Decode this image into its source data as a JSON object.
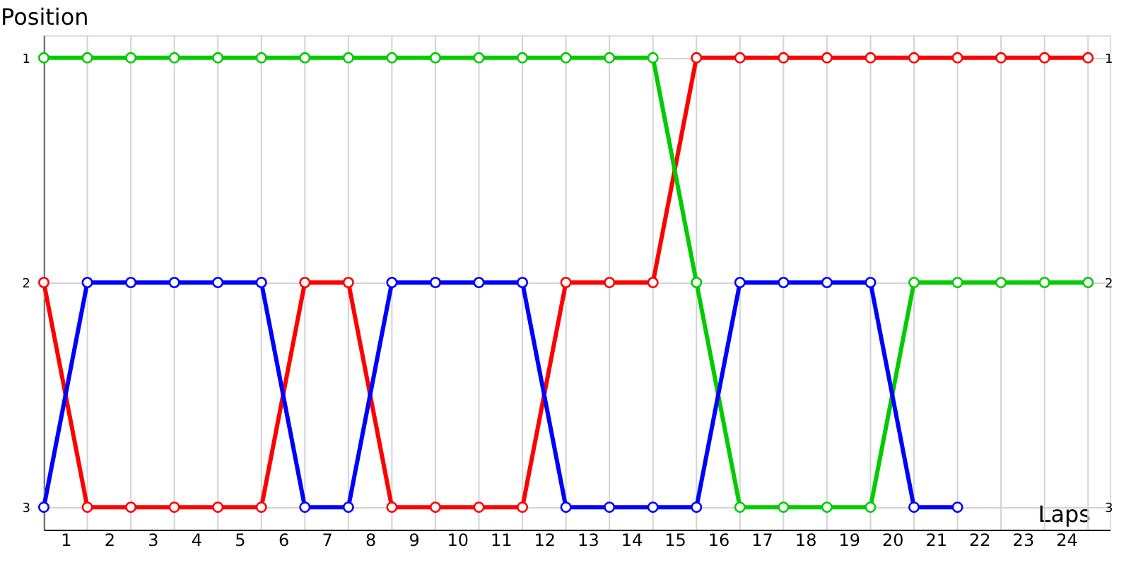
{
  "chart_data": {
    "type": "line",
    "xlabel": "Laps",
    "ylabel": "Position",
    "x": [
      0,
      1,
      2,
      3,
      4,
      5,
      6,
      7,
      8,
      9,
      10,
      11,
      12,
      13,
      14,
      15,
      16,
      17,
      18,
      19,
      20,
      21,
      22,
      23,
      24
    ],
    "series": [
      {
        "color": "#ff0000",
        "values": [
          2,
          3,
          3,
          3,
          3,
          3,
          2,
          2,
          3,
          3,
          3,
          3,
          2,
          2,
          2,
          1,
          1,
          1,
          1,
          1,
          1,
          1,
          1,
          1,
          1
        ]
      },
      {
        "color": "#00cc00",
        "values": [
          1,
          1,
          1,
          1,
          1,
          1,
          1,
          1,
          1,
          1,
          1,
          1,
          1,
          1,
          1,
          2,
          3,
          3,
          3,
          3,
          2,
          2,
          2,
          2,
          2
        ]
      },
      {
        "color": "#0000ff",
        "values": [
          3,
          2,
          2,
          2,
          2,
          2,
          3,
          3,
          2,
          2,
          2,
          2,
          3,
          3,
          3,
          3,
          2,
          2,
          2,
          2,
          3,
          3,
          null,
          null,
          null
        ]
      }
    ],
    "xlim": [
      0,
      24.5
    ],
    "xticks": [
      {
        "value": 0,
        "label": null
      },
      {
        "value": 1,
        "label": null
      },
      {
        "value": 2,
        "label": null
      },
      {
        "value": 3,
        "label": null
      },
      {
        "value": 4,
        "label": null
      },
      {
        "value": 5,
        "label": null
      },
      {
        "value": 6,
        "label": null
      },
      {
        "value": 7,
        "label": null
      },
      {
        "value": 8,
        "label": null
      },
      {
        "value": 9,
        "label": null
      },
      {
        "value": 10,
        "label": null
      },
      {
        "value": 11,
        "label": null
      },
      {
        "value": 12,
        "label": null
      },
      {
        "value": 13,
        "label": null
      },
      {
        "value": 14,
        "label": null
      },
      {
        "value": 15,
        "label": null
      },
      {
        "value": 16,
        "label": null
      },
      {
        "value": 17,
        "label": null
      },
      {
        "value": 18,
        "label": null
      },
      {
        "value": 19,
        "label": null
      },
      {
        "value": 20,
        "label": null
      },
      {
        "value": 21,
        "label": null
      },
      {
        "value": 22,
        "label": null
      },
      {
        "value": 23,
        "label": null
      },
      {
        "value": 24,
        "label": null
      },
      {
        "value": 0.5,
        "label": "1"
      },
      {
        "value": 1.5,
        "label": "2"
      },
      {
        "value": 2.5,
        "label": "3"
      },
      {
        "value": 3.5,
        "label": "4"
      },
      {
        "value": 4.5,
        "label": "5"
      },
      {
        "value": 5.5,
        "label": "6"
      },
      {
        "value": 6.5,
        "label": "7"
      },
      {
        "value": 7.5,
        "label": "8"
      },
      {
        "value": 8.5,
        "label": "9"
      },
      {
        "value": 9.5,
        "label": "10"
      },
      {
        "value": 10.5,
        "label": "11"
      },
      {
        "value": 11.5,
        "label": "12"
      },
      {
        "value": 12.5,
        "label": "13"
      },
      {
        "value": 13.5,
        "label": "14"
      },
      {
        "value": 14.5,
        "label": "15"
      },
      {
        "value": 15.5,
        "label": "16"
      },
      {
        "value": 16.5,
        "label": "17"
      },
      {
        "value": 17.5,
        "label": "18"
      },
      {
        "value": 18.5,
        "label": "19"
      },
      {
        "value": 19.5,
        "label": "20"
      },
      {
        "value": 20.5,
        "label": "21"
      },
      {
        "value": 21.5,
        "label": "22"
      },
      {
        "value": 22.5,
        "label": "23"
      },
      {
        "value": 23.5,
        "label": "24"
      }
    ],
    "ylim": [
      3.1,
      0.9
    ],
    "yticks": [
      1,
      2,
      3
    ],
    "y2lim": [
      3.1,
      0.9
    ],
    "y2ticks": [
      1,
      2,
      3
    ],
    "grid": true,
    "marker": "circle",
    "line_style": "solid"
  }
}
